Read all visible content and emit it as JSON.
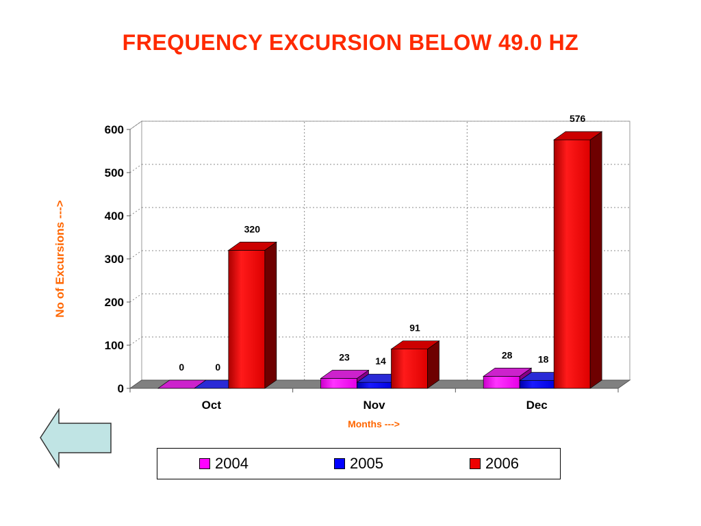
{
  "slide": {
    "title": "FREQUENCY EXCURSION BELOW 49.0 HZ"
  },
  "chart_data": {
    "type": "bar",
    "title": "FREQUENCY EXCURSION BELOW 49.0 HZ",
    "xlabel": "Months  --->",
    "ylabel": "No of Excursions --->",
    "categories": [
      "Oct",
      "Nov",
      "Dec"
    ],
    "series": [
      {
        "name": "2004",
        "values": [
          0,
          23,
          28
        ],
        "color": "#ff00ff"
      },
      {
        "name": "2005",
        "values": [
          0,
          14,
          18
        ],
        "color": "#0000ff"
      },
      {
        "name": "2006",
        "values": [
          320,
          91,
          576
        ],
        "color": "#ff0000"
      }
    ],
    "ylim": [
      0,
      600
    ],
    "yticks": [
      0,
      100,
      200,
      300,
      400,
      500,
      600
    ],
    "grid": true,
    "style": "3d",
    "legend_position": "bottom"
  },
  "navigation": {
    "back_arrow_icon": "left-arrow-icon",
    "back_arrow_color": "#c0e4e4"
  }
}
